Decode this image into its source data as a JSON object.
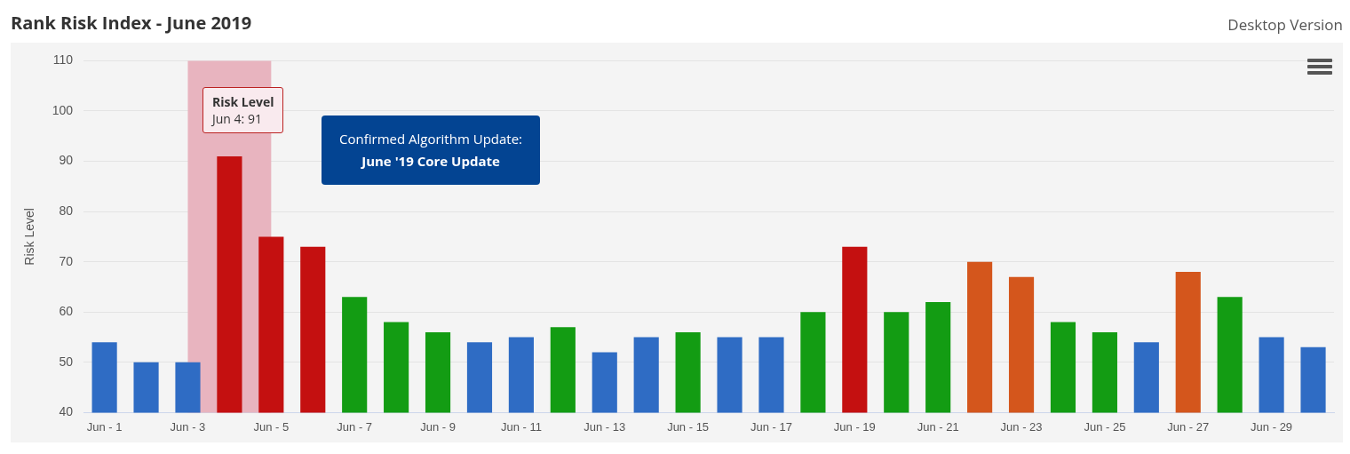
{
  "chart_data": {
    "type": "bar",
    "title": "Rank Risk Index - June 2019",
    "subtitle": "Desktop Version",
    "ylabel": "Risk Level",
    "categories": [
      "Jun - 1",
      null,
      "Jun - 3",
      null,
      "Jun - 5",
      null,
      "Jun - 7",
      null,
      "Jun - 9",
      null,
      "Jun - 11",
      null,
      "Jun - 13",
      null,
      "Jun - 15",
      null,
      "Jun - 17",
      null,
      "Jun - 19",
      null,
      "Jun - 21",
      null,
      "Jun - 23",
      null,
      "Jun - 25",
      null,
      "Jun - 27",
      null,
      "Jun - 29",
      null
    ],
    "values": [
      54,
      50,
      50,
      91,
      75,
      73,
      63,
      58,
      56,
      54,
      55,
      57,
      52,
      55,
      56,
      55,
      55,
      60,
      73,
      60,
      62,
      70,
      67,
      58,
      56,
      54,
      68,
      63,
      55,
      53
    ],
    "colors": [
      "#2f6cc4",
      "#2f6cc4",
      "#2f6cc4",
      "#c41010",
      "#c41010",
      "#c41010",
      "#139c13",
      "#139c13",
      "#139c13",
      "#2f6cc4",
      "#2f6cc4",
      "#139c13",
      "#2f6cc4",
      "#2f6cc4",
      "#139c13",
      "#2f6cc4",
      "#2f6cc4",
      "#139c13",
      "#c41010",
      "#139c13",
      "#139c13",
      "#d4561c",
      "#d4561c",
      "#139c13",
      "#139c13",
      "#2f6cc4",
      "#d4561c",
      "#139c13",
      "#2f6cc4",
      "#2f6cc4"
    ],
    "ylim": [
      40,
      110
    ],
    "yticks": [
      40,
      50,
      60,
      70,
      80,
      90,
      100,
      110
    ],
    "grid": "y",
    "legend": false,
    "bands": [
      {
        "axis": "x",
        "from": "Jun - 3",
        "to": "Jun - 5",
        "color": "#e8b4bf"
      }
    ],
    "annotations": [
      "Risk Level",
      "Jun 4: 91",
      "Confirmed Algorithm Update:",
      "June '19 Core Update"
    ]
  }
}
